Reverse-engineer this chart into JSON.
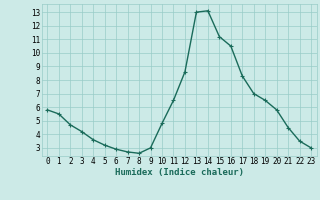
{
  "x": [
    0,
    1,
    2,
    3,
    4,
    5,
    6,
    7,
    8,
    9,
    10,
    11,
    12,
    13,
    14,
    15,
    16,
    17,
    18,
    19,
    20,
    21,
    22,
    23
  ],
  "y": [
    5.8,
    5.5,
    4.7,
    4.2,
    3.6,
    3.2,
    2.9,
    2.7,
    2.6,
    3.0,
    4.8,
    6.5,
    8.6,
    13.0,
    13.1,
    11.2,
    10.5,
    8.3,
    7.0,
    6.5,
    5.8,
    4.5,
    3.5,
    3.0
  ],
  "line_color": "#1a6b5a",
  "bg_color": "#cceae7",
  "grid_color": "#99ccc8",
  "xlabel": "Humidex (Indice chaleur)",
  "ylim": [
    2.4,
    13.6
  ],
  "xlim": [
    -0.5,
    23.5
  ],
  "yticks": [
    3,
    4,
    5,
    6,
    7,
    8,
    9,
    10,
    11,
    12,
    13
  ],
  "xticks": [
    0,
    1,
    2,
    3,
    4,
    5,
    6,
    7,
    8,
    9,
    10,
    11,
    12,
    13,
    14,
    15,
    16,
    17,
    18,
    19,
    20,
    21,
    22,
    23
  ],
  "marker": "+",
  "marker_size": 3,
  "line_width": 1.0,
  "tick_fontsize": 5.5,
  "xlabel_fontsize": 6.5
}
